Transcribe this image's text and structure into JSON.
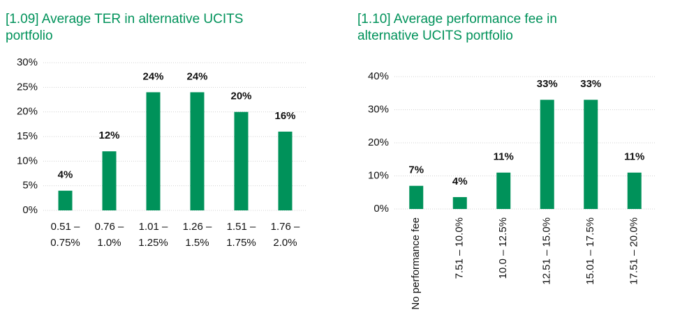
{
  "chart_data": [
    {
      "type": "bar",
      "title": "[1.09] Average TER in alternative UCITS portfolio",
      "categories": [
        "0.51 – 0.75%",
        "0.76 – 1.0%",
        "1.01 – 1.25%",
        "1.26 – 1.5%",
        "1.51 – 1.75%",
        "1.76 – 2.0%"
      ],
      "values": [
        4,
        12,
        24,
        24,
        20,
        16
      ],
      "value_labels": [
        "4%",
        "12%",
        "24%",
        "24%",
        "20%",
        "16%"
      ],
      "color": "#00925a",
      "ylim": [
        0,
        30
      ],
      "yticks": [
        {
          "value": 0,
          "label": "0%"
        },
        {
          "value": 5,
          "label": "5%"
        },
        {
          "value": 10,
          "label": "10%"
        },
        {
          "value": 15,
          "label": "15%"
        },
        {
          "value": 20,
          "label": "20%"
        },
        {
          "value": 25,
          "label": "25%"
        },
        {
          "value": 30,
          "label": "30%"
        }
      ],
      "grid": true
    },
    {
      "type": "bar",
      "title": "[1.10] Average performance fee in alternative UCITS portfolio",
      "categories": [
        "No performance fee",
        "7.51 – 10.0%",
        "10.0 – 12.5%",
        "12.51 – 15.0%",
        "15.01 – 17.5%",
        "17.51 – 20.0%"
      ],
      "values": [
        7,
        3.6,
        11,
        33,
        33,
        11
      ],
      "value_labels": [
        "7%",
        "4%",
        "11%",
        "33%",
        "33%",
        "11%"
      ],
      "color": "#00925a",
      "ylim": [
        0,
        40
      ],
      "yticks": [
        {
          "value": 0,
          "label": "0%"
        },
        {
          "value": 10,
          "label": "10%"
        },
        {
          "value": 20,
          "label": "20%"
        },
        {
          "value": 30,
          "label": "30%"
        },
        {
          "value": 40,
          "label": "40%"
        }
      ],
      "grid": true
    }
  ]
}
